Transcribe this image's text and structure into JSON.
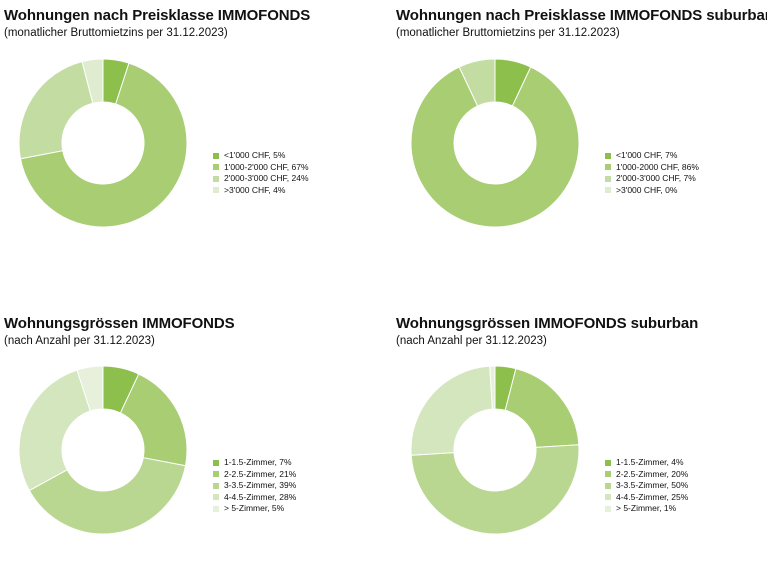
{
  "colors": [
    "#8cbf4c",
    "#a8cd73",
    "#c3dca2",
    "#dfecd0",
    "#ebf3e2"
  ],
  "chart_data": [
    {
      "type": "pie",
      "donut": true,
      "title": "Wohnungen nach Preisklasse IMMOFONDS",
      "subtitle": "(monatlicher Bruttomietzins per 31.12.2023)",
      "labels": [
        "<1'000 CHF, 5%",
        "1'000-2'000 CHF, 67%",
        "2'000-3'000 CHF, 24%",
        ">3'000 CHF, 4%"
      ],
      "values": [
        5,
        67,
        24,
        4
      ],
      "colors": [
        "#8cbf4c",
        "#a8cd73",
        "#c3dca2",
        "#dfecd0"
      ],
      "legend_position": "right"
    },
    {
      "type": "pie",
      "donut": true,
      "title": "Wohnungen nach Preisklasse IMMOFONDS suburban",
      "subtitle": "(monatlicher Bruttomietzins per 31.12.2023)",
      "labels": [
        "<1'000 CHF, 7%",
        "1'000-2000 CHF, 86%",
        "2'000-3'000 CHF, 7%",
        ">3'000 CHF, 0%"
      ],
      "values": [
        7,
        86,
        7,
        0
      ],
      "colors": [
        "#8cbf4c",
        "#a8cd73",
        "#c3dca2",
        "#dfecd0"
      ],
      "legend_position": "right"
    },
    {
      "type": "pie",
      "donut": true,
      "title": "Wohnungsgrössen IMMOFONDS",
      "subtitle": "(nach Anzahl per 31.12.2023)",
      "labels": [
        "1-1.5-Zimmer, 7%",
        "2-2.5-Zimmer, 21%",
        "3-3.5-Zimmer, 39%",
        "4-4.5-Zimmer, 28%",
        "> 5-Zimmer, 5%"
      ],
      "values": [
        7,
        21,
        39,
        28,
        5
      ],
      "colors": [
        "#8cbf4c",
        "#a8cd73",
        "#b9d791",
        "#d4e6bd",
        "#e6f0db"
      ],
      "legend_position": "right"
    },
    {
      "type": "pie",
      "donut": true,
      "title": "Wohnungsgrössen IMMOFONDS suburban",
      "subtitle": "(nach Anzahl per 31.12.2023)",
      "labels": [
        "1-1.5-Zimmer, 4%",
        "2-2.5-Zimmer, 20%",
        "3-3.5-Zimmer, 50%",
        "4-4.5-Zimmer, 25%",
        "> 5-Zimmer, 1%"
      ],
      "values": [
        4,
        20,
        50,
        25,
        1
      ],
      "colors": [
        "#8cbf4c",
        "#a8cd73",
        "#b9d791",
        "#d4e6bd",
        "#e6f0db"
      ],
      "legend_position": "right"
    }
  ]
}
